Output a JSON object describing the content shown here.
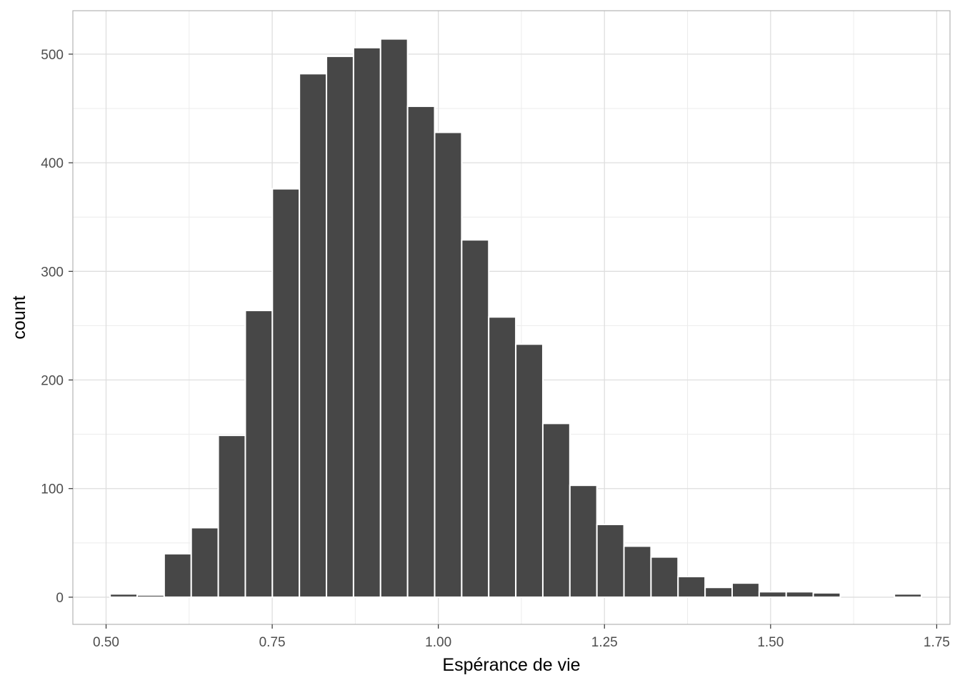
{
  "chart_data": {
    "type": "bar",
    "subtype": "histogram",
    "xlabel": "Espérance de vie",
    "ylabel": "count",
    "xlim": [
      0.45,
      1.77
    ],
    "ylim": [
      -25,
      540
    ],
    "x_ticks": [
      0.5,
      0.75,
      1.0,
      1.25,
      1.5,
      1.75
    ],
    "x_tick_labels": [
      "0.50",
      "0.75",
      "1.00",
      "1.25",
      "1.50",
      "1.75"
    ],
    "y_ticks": [
      0,
      100,
      200,
      300,
      400,
      500
    ],
    "y_tick_labels": [
      "0",
      "100",
      "200",
      "300",
      "400",
      "500"
    ],
    "bin_width": 0.0407,
    "bin_centers": [
      0.5264,
      0.5671,
      0.6078,
      0.6485,
      0.6892,
      0.7299,
      0.7706,
      0.8113,
      0.852,
      0.8927,
      0.9334,
      0.9741,
      1.0148,
      1.0555,
      1.0962,
      1.1369,
      1.1776,
      1.2183,
      1.259,
      1.2997,
      1.3404,
      1.3811,
      1.4218,
      1.4625,
      1.5032,
      1.5439,
      1.5846,
      1.6253,
      1.666,
      1.7067
    ],
    "values": [
      3,
      2,
      40,
      64,
      149,
      264,
      376,
      482,
      498,
      506,
      514,
      452,
      428,
      329,
      258,
      233,
      160,
      103,
      67,
      47,
      37,
      19,
      9,
      13,
      5,
      5,
      4,
      0,
      0,
      3
    ],
    "bar_color": "#474747",
    "bar_outline": "#ffffff",
    "grid": true,
    "theme": "light"
  }
}
